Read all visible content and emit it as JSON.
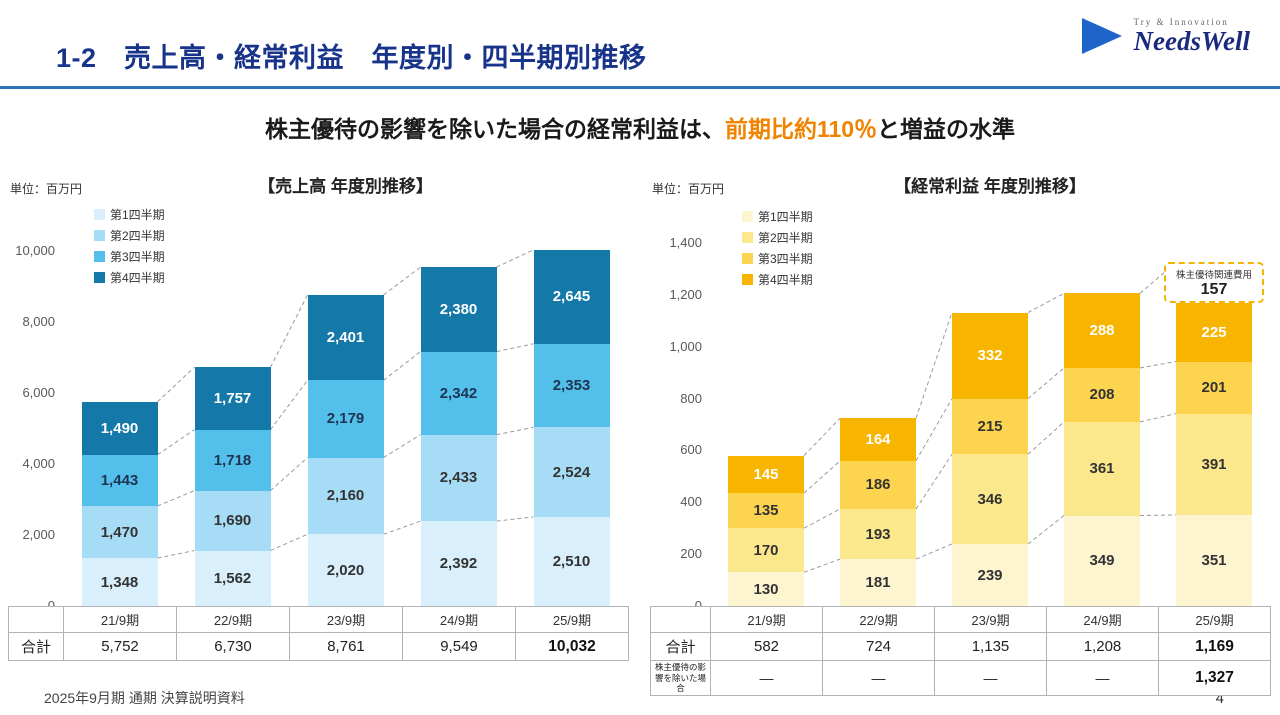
{
  "header": {
    "title": "1-2　売上高・経常利益　年度別・四半期別推移",
    "logo": {
      "tagline": "Try & Innovation",
      "name": "NeedsWell"
    },
    "title_color": "#17338a",
    "line_color": "#2e74b5"
  },
  "subtitle": {
    "prefix": "株主優待の影響を除いた場合の経常利益は、",
    "highlight": "前期比約110％",
    "suffix": "と増益の水準",
    "highlight_color": "#f08300"
  },
  "chart_data": [
    {
      "type": "bar",
      "stacked": true,
      "title": "【売上高 年度別推移】",
      "unit": "単位：百万円",
      "categories": [
        "21/9期",
        "22/9期",
        "23/9期",
        "24/9期",
        "25/9期"
      ],
      "series": [
        {
          "name": "第1四半期",
          "color": "#d9effb",
          "label_color": "#333333",
          "values": [
            1348,
            1562,
            2020,
            2392,
            2510
          ]
        },
        {
          "name": "第2四半期",
          "color": "#a6dcf5",
          "label_color": "#333333",
          "values": [
            1470,
            1690,
            2160,
            2433,
            2524
          ]
        },
        {
          "name": "第3四半期",
          "color": "#53c0ec",
          "label_color": "#1f3450",
          "values": [
            1443,
            1718,
            2179,
            2342,
            2353
          ]
        },
        {
          "name": "第4四半期",
          "color": "#1478a8",
          "label_color": "#ffffff",
          "values": [
            1490,
            1757,
            2401,
            2380,
            2645
          ]
        }
      ],
      "ylim": [
        0,
        10000
      ],
      "yticks": [
        0,
        2000,
        4000,
        6000,
        8000,
        10000
      ],
      "grid": false,
      "legend_position": "top-left",
      "totals_row": {
        "label": "合計",
        "values": [
          "5,752",
          "6,730",
          "8,761",
          "9,549",
          "10,032"
        ]
      }
    },
    {
      "type": "bar",
      "stacked": true,
      "title": "【経常利益 年度別推移】",
      "unit": "単位：百万円",
      "categories": [
        "21/9期",
        "22/9期",
        "23/9期",
        "24/9期",
        "25/9期"
      ],
      "series": [
        {
          "name": "第1四半期",
          "color": "#fdf5d0",
          "label_color": "#333333",
          "values": [
            130,
            181,
            239,
            349,
            351
          ]
        },
        {
          "name": "第2四半期",
          "color": "#fbe88c",
          "label_color": "#333333",
          "values": [
            170,
            193,
            346,
            361,
            391
          ]
        },
        {
          "name": "第3四半期",
          "color": "#fcd44f",
          "label_color": "#333333",
          "values": [
            135,
            186,
            215,
            208,
            201
          ]
        },
        {
          "name": "第4四半期",
          "color": "#f7b500",
          "label_color": "#ffffff",
          "values": [
            145,
            164,
            332,
            288,
            225
          ]
        }
      ],
      "ylim": [
        0,
        1400
      ],
      "yticks": [
        0,
        200,
        400,
        600,
        800,
        1000,
        1200,
        1400
      ],
      "grid": false,
      "legend_position": "top-left",
      "annotation": {
        "label": "株主優待関連費用",
        "value": 157,
        "border_color": "#f5b301"
      },
      "totals_row": {
        "label": "合計",
        "values": [
          "582",
          "724",
          "1,135",
          "1,208",
          "1,169"
        ]
      },
      "extra_row": {
        "label": "株主優待の影響を除いた場合",
        "values": [
          "―",
          "―",
          "―",
          "―",
          "1,327"
        ]
      }
    }
  ],
  "footer": {
    "source": "2025年9月期 通期 決算説明資料",
    "page": "4"
  }
}
